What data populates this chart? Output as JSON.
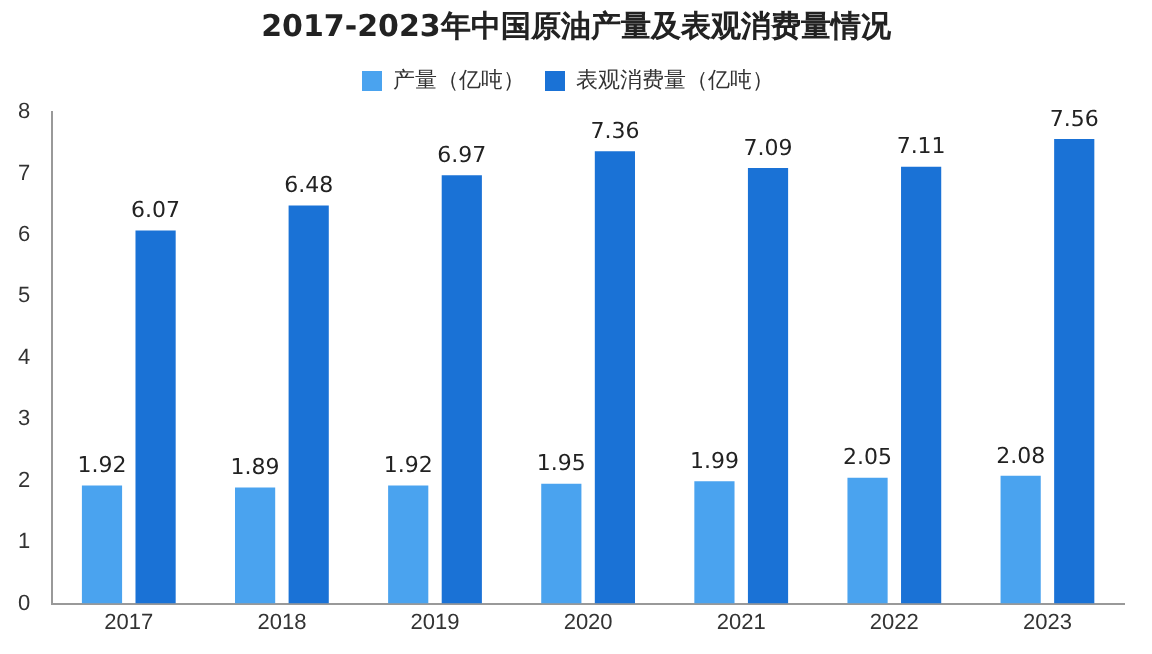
{
  "chart_data": {
    "type": "bar",
    "title": "2017-2023年中国原油产量及表观消费量情况",
    "categories": [
      "2017",
      "2018",
      "2019",
      "2020",
      "2021",
      "2022",
      "2023"
    ],
    "series": [
      {
        "name": "产量（亿吨）",
        "color": "#4aa3ef",
        "values": [
          1.92,
          1.89,
          1.92,
          1.95,
          1.99,
          2.05,
          2.08
        ]
      },
      {
        "name": "表观消费量（亿吨）",
        "color": "#1a72d6",
        "values": [
          6.07,
          6.48,
          6.97,
          7.36,
          7.09,
          7.11,
          7.56
        ]
      }
    ],
    "ylim": [
      0,
      8
    ],
    "yticks": [
      0,
      1,
      2,
      3,
      4,
      5,
      6,
      7,
      8
    ],
    "grid": false,
    "legend": "top",
    "data_labels": true
  }
}
